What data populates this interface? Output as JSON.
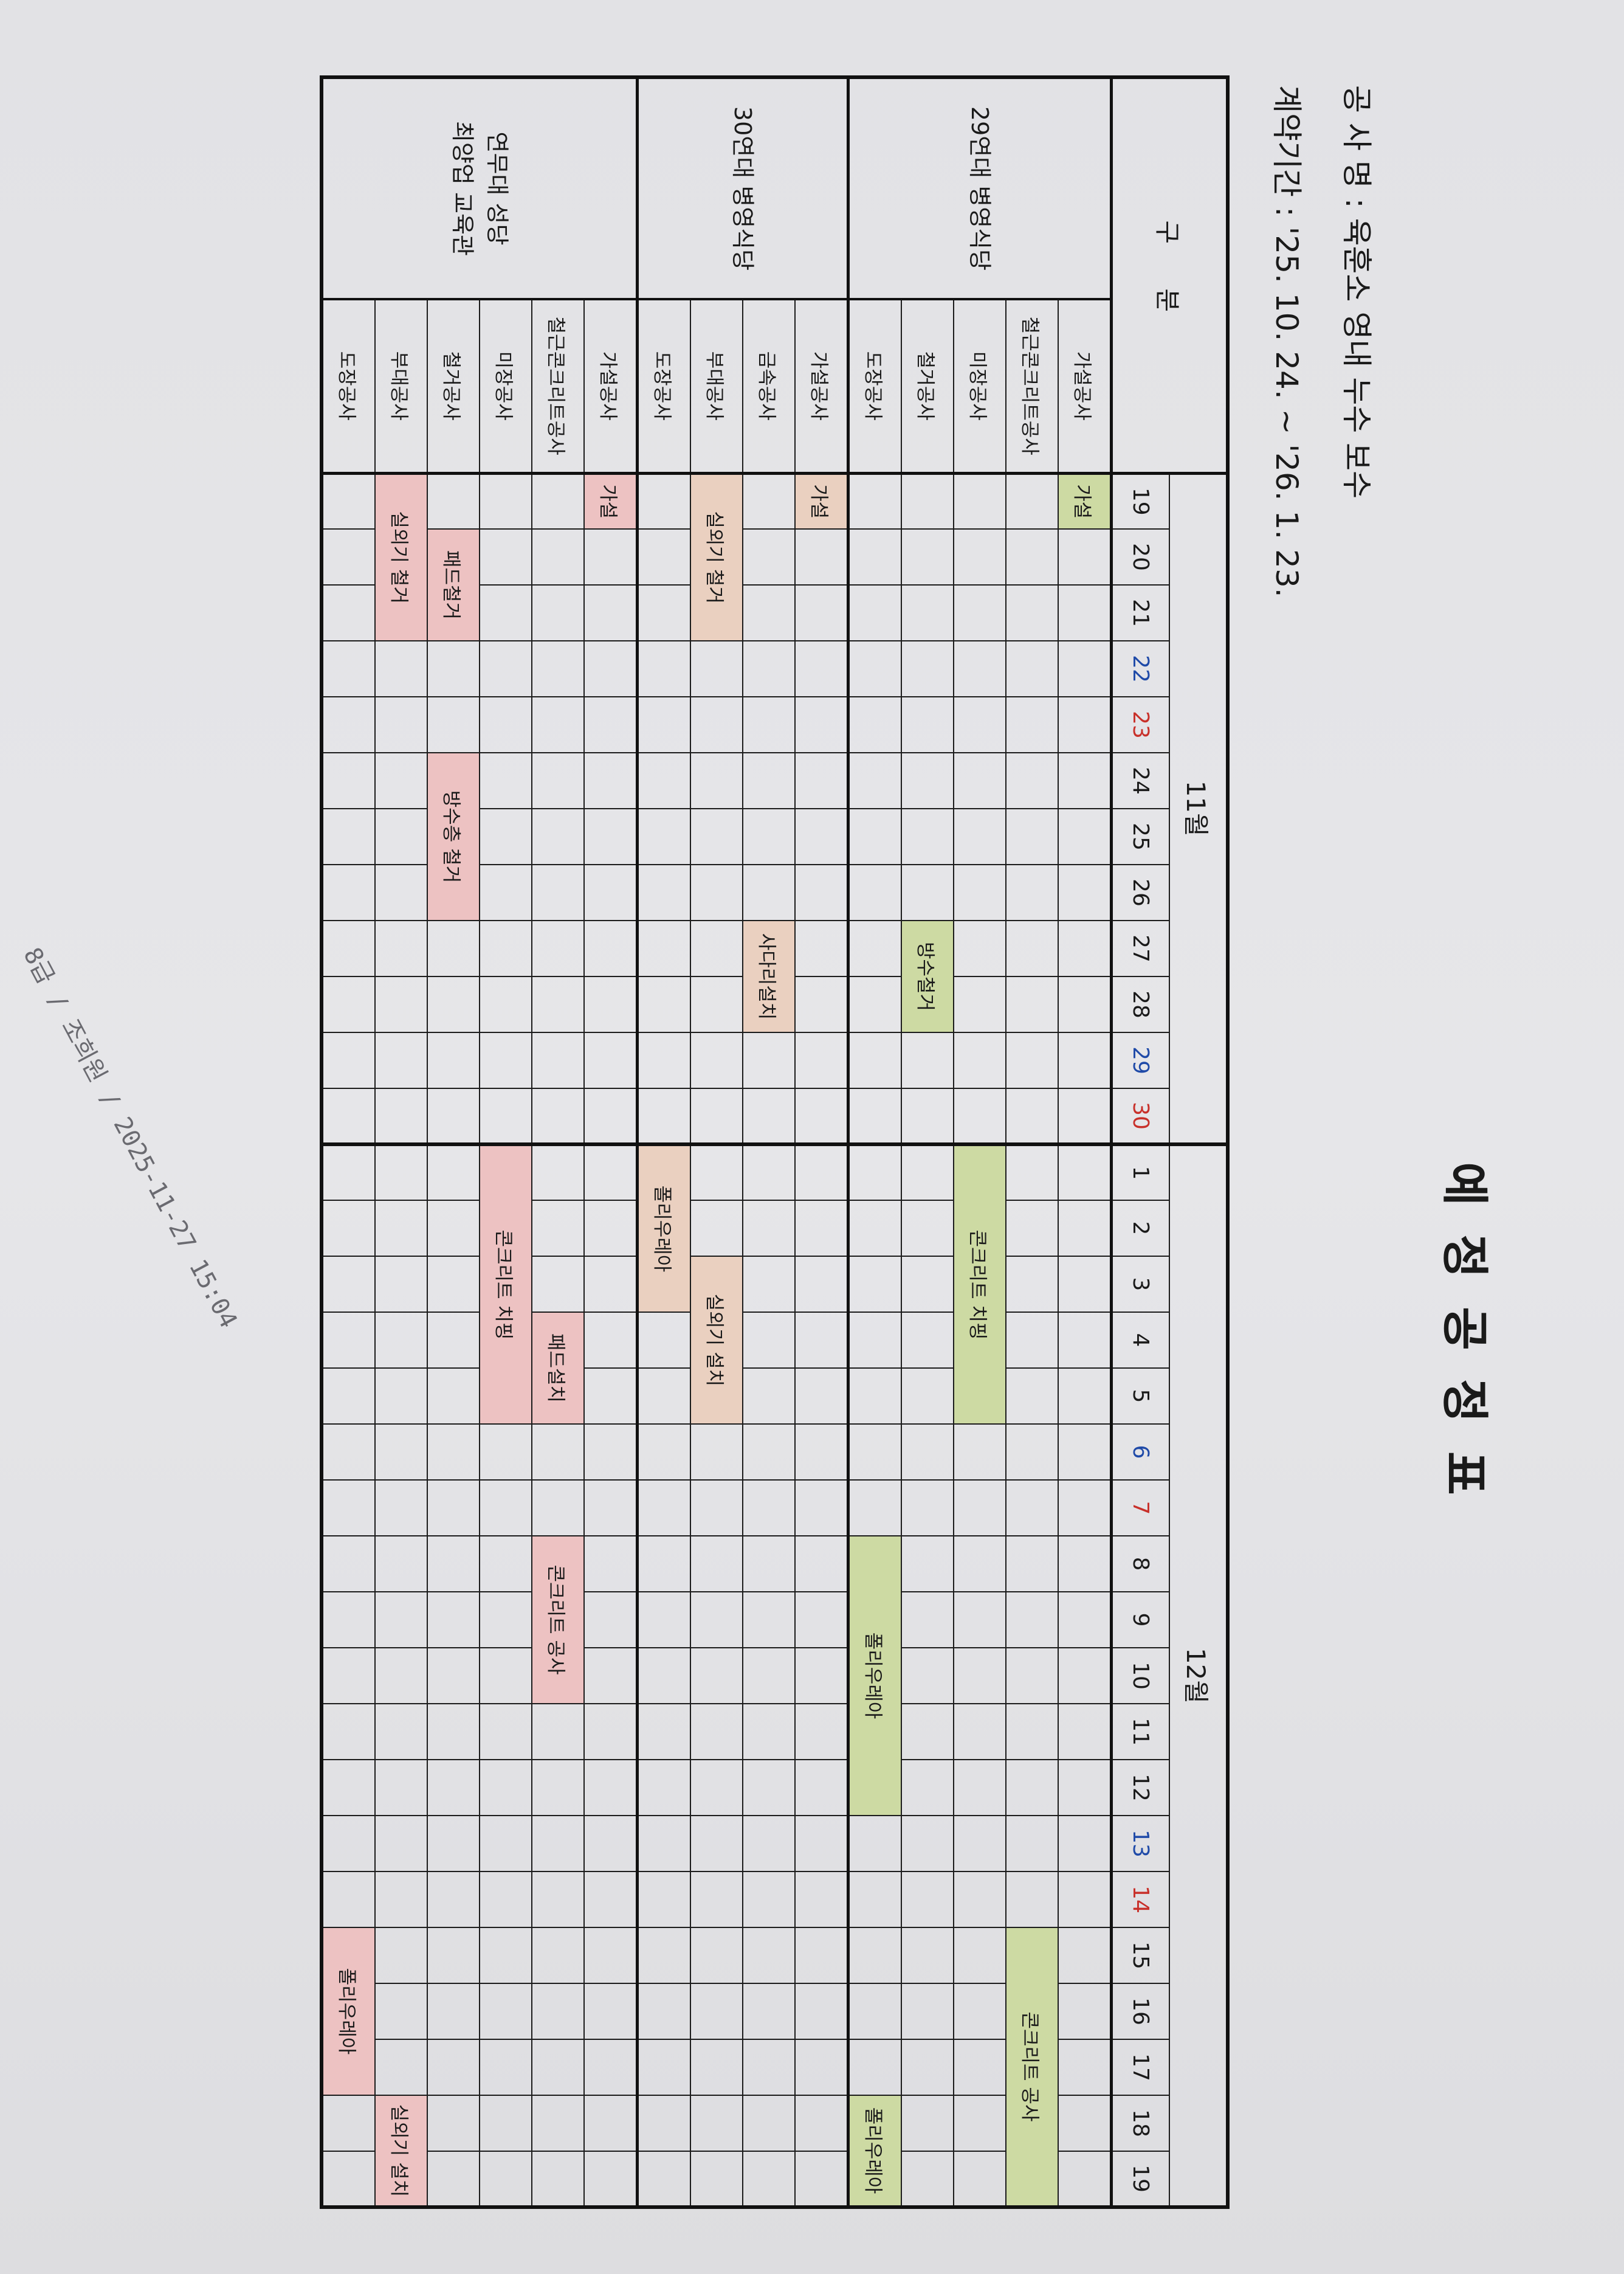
{
  "title": "예 정 공 정 표",
  "project": {
    "label": "공 사 명",
    "value": "육훈소 영내 누수 보수"
  },
  "contract": {
    "label": "계약기간",
    "value": "'25. 10. 24. ~ '26. 1. 23."
  },
  "stamp": "8급 / 조희원 / 2025-11-27 15:04",
  "colors": {
    "saturday": "#1f4aa8",
    "sunday": "#c8302a",
    "green_bar": "#cddaa3",
    "peach_bar": "#ead0c0",
    "pink_bar": "#edc2c2"
  },
  "table": {
    "header_label": "구 분",
    "months": [
      {
        "month": 11,
        "label": "11월",
        "days": [
          {
            "d": "19"
          },
          {
            "d": "20"
          },
          {
            "d": "21"
          },
          {
            "d": "22",
            "w": "sat"
          },
          {
            "d": "23",
            "w": "sun"
          },
          {
            "d": "24"
          },
          {
            "d": "25"
          },
          {
            "d": "26"
          },
          {
            "d": "27"
          },
          {
            "d": "28"
          },
          {
            "d": "29",
            "w": "sat"
          },
          {
            "d": "30",
            "w": "sun"
          }
        ]
      },
      {
        "month": 12,
        "label": "12월",
        "days": [
          {
            "d": "1"
          },
          {
            "d": "2"
          },
          {
            "d": "3"
          },
          {
            "d": "4"
          },
          {
            "d": "5"
          },
          {
            "d": "6",
            "w": "sat"
          },
          {
            "d": "7",
            "w": "sun"
          },
          {
            "d": "8"
          },
          {
            "d": "9"
          },
          {
            "d": "10"
          },
          {
            "d": "11"
          },
          {
            "d": "12"
          },
          {
            "d": "13",
            "w": "sat"
          },
          {
            "d": "14",
            "w": "sun"
          },
          {
            "d": "15"
          },
          {
            "d": "16"
          },
          {
            "d": "17"
          },
          {
            "d": "18"
          },
          {
            "d": "19"
          }
        ]
      }
    ],
    "groups": [
      {
        "name": [
          "29연대 병영식당"
        ],
        "bar_color": "#cddaa3",
        "rows": [
          {
            "name": "가설공사",
            "bars": [
              {
                "start": "11/19",
                "end": "11/19",
                "label": "가설"
              }
            ]
          },
          {
            "name": "철근콘크리트공사",
            "bars": [
              {
                "start": "12/15",
                "end": "12/19",
                "label": "콘크리트 공사"
              }
            ]
          },
          {
            "name": "미장공사",
            "bars": [
              {
                "start": "12/1",
                "end": "12/5",
                "label": "콘크리트 치핑"
              }
            ]
          },
          {
            "name": "철거공사",
            "bars": [
              {
                "start": "11/27",
                "end": "11/28",
                "label": "방수철거"
              }
            ]
          },
          {
            "name": "도장공사",
            "bars": [
              {
                "start": "12/8",
                "end": "12/12",
                "label": "폴리우레아"
              },
              {
                "start": "12/18",
                "end": "12/19",
                "label": "폴리우레아"
              }
            ]
          }
        ]
      },
      {
        "name": [
          "30연대 병영식당"
        ],
        "bar_color": "#ead0c0",
        "rows": [
          {
            "name": "가설공사",
            "bars": [
              {
                "start": "11/19",
                "end": "11/19",
                "label": "가설"
              }
            ]
          },
          {
            "name": "금속공사",
            "bars": [
              {
                "start": "11/27",
                "end": "11/28",
                "label": "사다리설치"
              }
            ]
          },
          {
            "name": "부대공사",
            "bars": [
              {
                "start": "11/19",
                "end": "11/21",
                "label": "실외기 철거"
              },
              {
                "start": "12/3",
                "end": "12/5",
                "label": "실외기 설치"
              }
            ]
          },
          {
            "name": "도장공사",
            "bars": [
              {
                "start": "12/1",
                "end": "12/3",
                "label": "폴리우레아"
              }
            ]
          }
        ]
      },
      {
        "name": [
          "연무대 성당",
          "최양업 교육관"
        ],
        "bar_color": "#edc2c2",
        "rows": [
          {
            "name": "가설공사",
            "bars": [
              {
                "start": "11/19",
                "end": "11/19",
                "label": "가설"
              }
            ]
          },
          {
            "name": "철근콘크리트공사",
            "bars": [
              {
                "start": "12/4",
                "end": "12/5",
                "label": "패드설치"
              },
              {
                "start": "12/8",
                "end": "12/10",
                "label": "콘크리트 공사"
              }
            ]
          },
          {
            "name": "미장공사",
            "bars": [
              {
                "start": "12/1",
                "end": "12/5",
                "label": "콘크리트 치핑"
              }
            ]
          },
          {
            "name": "철거공사",
            "bars": [
              {
                "start": "11/20",
                "end": "11/21",
                "label": "패드철거"
              },
              {
                "start": "11/24",
                "end": "11/26",
                "label": "방수층 철거"
              }
            ]
          },
          {
            "name": "부대공사",
            "bars": [
              {
                "start": "11/19",
                "end": "11/21",
                "label": "실외기 철거"
              },
              {
                "start": "12/18",
                "end": "12/19",
                "label": "실외기 설치"
              }
            ]
          },
          {
            "name": "도장공사",
            "bars": [
              {
                "start": "12/15",
                "end": "12/17",
                "label": "폴리우레아"
              }
            ]
          }
        ]
      }
    ]
  }
}
